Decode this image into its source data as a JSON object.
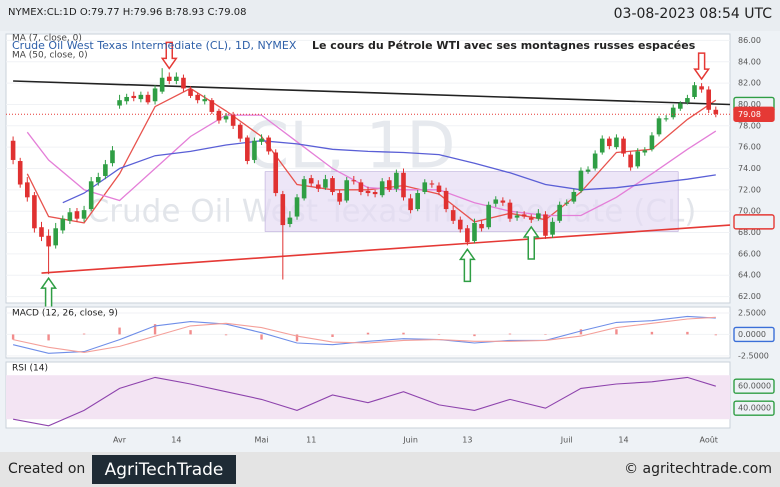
{
  "header": {
    "symbol_info": "NYMEX:CL:1D O:79.77 H:79.96 B:78.93 C:79.08",
    "timestamp": "03-08-2023 08:54 UTC"
  },
  "chart_data": [
    {
      "type": "candlestick",
      "title": "Le cours du Pétrole WTI avec ses montagnes russes espacées",
      "subtitle": "Crude Oil West Texas Intermediate (CL), 1D, NYMEX",
      "watermark": "CL, 1D",
      "watermark_name": "Crude Oil West Texas Intermediate (CL)",
      "categories": [
        null,
        null,
        null,
        null,
        null,
        null,
        null,
        null,
        null,
        null,
        null,
        null,
        null,
        null,
        null,
        "Avr",
        null,
        null,
        null,
        null,
        null,
        null,
        null,
        "14",
        null,
        null,
        null,
        null,
        null,
        null,
        null,
        null,
        null,
        null,
        null,
        "Mai",
        null,
        null,
        null,
        null,
        null,
        null,
        "11",
        null,
        null,
        null,
        null,
        null,
        null,
        null,
        null,
        null,
        null,
        null,
        null,
        null,
        "Juin",
        null,
        null,
        null,
        null,
        null,
        null,
        null,
        "13",
        null,
        null,
        null,
        null,
        null,
        null,
        null,
        null,
        null,
        null,
        null,
        null,
        null,
        "Juil",
        null,
        null,
        null,
        null,
        null,
        null,
        null,
        "14",
        null,
        null,
        null,
        null,
        null,
        null,
        null,
        null,
        null,
        null,
        null,
        "Août",
        null
      ],
      "open": [
        76.6,
        74.7,
        72.7,
        71.5,
        68.5,
        67.7,
        66.8,
        68.2,
        69.1,
        70.0,
        69.3,
        70.2,
        72.7,
        73.3,
        74.5,
        79.9,
        80.3,
        80.8,
        80.5,
        80.9,
        80.3,
        81.2,
        82.6,
        82.2,
        82.5,
        81.4,
        80.9,
        80.3,
        80.4,
        79.4,
        78.6,
        79.0,
        78.1,
        76.9,
        74.8,
        76.5,
        76.9,
        75.5,
        71.6,
        68.8,
        69.5,
        71.2,
        73.1,
        72.5,
        72.2,
        73.1,
        71.7,
        71.0,
        72.9,
        72.7,
        71.9,
        71.8,
        71.5,
        72.9,
        72.1,
        73.6,
        71.2,
        70.2,
        71.8,
        72.6,
        72.4,
        71.9,
        70.1,
        69.2,
        68.4,
        67.2,
        68.8,
        68.5,
        70.7,
        71.0,
        70.8,
        69.4,
        69.7,
        69.4,
        69.3,
        69.7,
        67.8,
        69.1,
        70.7,
        70.9,
        71.9,
        73.7,
        74.0,
        75.5,
        76.8,
        76.0,
        76.8,
        75.3,
        74.2,
        75.5,
        75.8,
        77.2,
        78.6,
        78.8,
        79.6,
        80.2,
        80.7,
        81.7,
        81.4,
        79.5
      ],
      "high": [
        77.0,
        75.0,
        73.2,
        71.8,
        69.0,
        68.3,
        68.9,
        69.6,
        70.3,
        70.3,
        70.5,
        73.2,
        73.6,
        74.8,
        76.1,
        80.9,
        81.0,
        81.2,
        81.2,
        81.2,
        81.8,
        83.4,
        83.0,
        83.0,
        82.8,
        81.7,
        81.1,
        80.9,
        80.6,
        79.6,
        79.2,
        79.3,
        78.3,
        77.1,
        76.9,
        77.2,
        77.1,
        75.8,
        71.9,
        70.0,
        71.6,
        73.3,
        73.4,
        72.9,
        73.4,
        73.3,
        72.0,
        73.2,
        73.3,
        73.0,
        72.3,
        72.0,
        73.1,
        73.2,
        73.9,
        74.0,
        71.6,
        72.0,
        73.0,
        72.9,
        72.7,
        72.2,
        70.5,
        69.5,
        68.7,
        69.3,
        69.2,
        70.9,
        71.4,
        71.3,
        71.1,
        70.0,
        70.0,
        69.7,
        70.2,
        70.0,
        69.4,
        70.9,
        71.1,
        72.1,
        74.1,
        74.2,
        75.7,
        77.1,
        77.0,
        77.2,
        77.0,
        75.6,
        75.9,
        76.0,
        77.4,
        78.9,
        79.0,
        80.0,
        80.3,
        80.9,
        82.1,
        82.0,
        81.7,
        79.8
      ],
      "low": [
        74.4,
        72.2,
        70.9,
        68.0,
        67.2,
        64.1,
        66.5,
        67.9,
        68.8,
        69.0,
        69.0,
        70.0,
        72.4,
        73.0,
        74.2,
        79.6,
        80.0,
        80.3,
        80.2,
        80.0,
        80.0,
        81.0,
        81.9,
        81.9,
        81.2,
        80.6,
        80.1,
        80.0,
        79.1,
        78.2,
        78.3,
        77.7,
        76.5,
        74.4,
        74.5,
        76.2,
        75.3,
        71.4,
        63.6,
        68.5,
        69.2,
        71.0,
        72.3,
        71.8,
        72.0,
        71.5,
        70.6,
        70.8,
        72.5,
        71.5,
        71.4,
        71.3,
        71.3,
        71.8,
        71.8,
        71.0,
        69.8,
        70.0,
        71.6,
        72.2,
        71.5,
        69.9,
        68.8,
        68.0,
        66.8,
        67.0,
        68.1,
        68.3,
        70.4,
        70.5,
        69.0,
        69.1,
        69.3,
        68.9,
        69.1,
        67.4,
        67.5,
        68.9,
        70.5,
        70.7,
        71.7,
        73.5,
        73.8,
        75.3,
        75.8,
        75.8,
        75.1,
        73.8,
        74.0,
        75.2,
        75.6,
        77.0,
        78.4,
        78.6,
        79.4,
        80.0,
        80.5,
        81.1,
        79.2,
        78.8
      ],
      "close": [
        74.8,
        72.5,
        71.3,
        68.4,
        67.6,
        66.7,
        68.4,
        69.3,
        69.9,
        69.3,
        70.1,
        72.8,
        73.2,
        74.4,
        75.7,
        80.4,
        80.7,
        80.6,
        80.9,
        80.2,
        81.5,
        82.5,
        82.2,
        82.6,
        81.5,
        80.8,
        80.4,
        80.5,
        79.3,
        78.5,
        78.9,
        78.0,
        76.8,
        74.7,
        76.6,
        76.8,
        75.6,
        71.7,
        68.7,
        69.4,
        71.3,
        73.0,
        72.6,
        72.1,
        73.0,
        71.8,
        70.9,
        72.9,
        72.8,
        71.8,
        71.7,
        71.6,
        72.8,
        72.0,
        73.6,
        71.3,
        70.1,
        71.7,
        72.7,
        72.5,
        71.8,
        70.2,
        69.1,
        68.3,
        67.1,
        68.9,
        68.4,
        70.6,
        71.1,
        70.8,
        69.3,
        69.6,
        69.5,
        69.2,
        69.8,
        67.7,
        69.0,
        70.6,
        70.8,
        71.8,
        73.8,
        73.9,
        75.4,
        76.8,
        76.1,
        76.9,
        75.4,
        74.1,
        75.6,
        75.7,
        77.1,
        78.7,
        78.7,
        79.7,
        80.1,
        80.6,
        81.8,
        81.4,
        79.5,
        79.1
      ],
      "up_color": "#2f9e44",
      "down_color": "#e03131",
      "series": [
        {
          "name": "MA (7, close, 0)",
          "color": "#e8534e",
          "x": [
            2,
            5,
            10,
            15,
            20,
            25,
            30,
            35,
            40,
            45,
            50,
            55,
            60,
            65,
            70,
            75,
            80,
            85,
            90,
            95,
            99
          ],
          "values": [
            73.5,
            69.5,
            68.9,
            73.5,
            79.8,
            81.5,
            79.4,
            77.0,
            72.5,
            72.0,
            72.0,
            72.4,
            71.6,
            69.0,
            69.8,
            69.2,
            71.8,
            75.5,
            75.8,
            78.6,
            80.4
          ]
        },
        {
          "color": "#e47fd8",
          "x": [
            2,
            5,
            10,
            15,
            20,
            25,
            30,
            35,
            40,
            45,
            50,
            55,
            60,
            65,
            70,
            75,
            80,
            85,
            90,
            95,
            99
          ],
          "values": [
            77.4,
            74.8,
            72.0,
            71.0,
            74.0,
            77.0,
            79.0,
            79.0,
            76.5,
            74.0,
            72.2,
            72.0,
            72.0,
            70.8,
            70.0,
            69.6,
            69.6,
            71.3,
            73.5,
            75.8,
            77.5
          ]
        },
        {
          "name": "MA (50, close, 0)",
          "color": "#5a5fd6",
          "x": [
            7,
            10,
            15,
            20,
            25,
            30,
            35,
            40,
            45,
            50,
            55,
            60,
            65,
            70,
            75,
            80,
            85,
            90,
            95,
            99
          ],
          "values": [
            70.8,
            71.7,
            74.0,
            75.2,
            75.6,
            76.2,
            76.6,
            76.3,
            75.8,
            75.6,
            75.5,
            75.3,
            74.5,
            73.6,
            72.5,
            72.0,
            72.2,
            72.6,
            73.0,
            73.4
          ]
        }
      ],
      "lines": [
        {
          "color": "#222222",
          "x": [
            0,
            101
          ],
          "values": [
            82.2,
            80.0
          ]
        },
        {
          "color": "#e53935",
          "x": [
            4,
            101
          ],
          "values": [
            64.2,
            68.7
          ]
        }
      ],
      "zone": {
        "color": "#e6dcf3",
        "x": [
          35.5,
          93.7
        ],
        "values": [
          73.7,
          68.1
        ]
      },
      "arrows": [
        {
          "at": 22,
          "direction": "down",
          "color": "#e53935"
        },
        {
          "at": 97,
          "direction": "down",
          "color": "#e53935"
        },
        {
          "at": 5,
          "direction": "up",
          "color": "#2f9e44"
        },
        {
          "at": 64,
          "direction": "up",
          "color": "#2f9e44"
        },
        {
          "at": 73,
          "direction": "up",
          "color": "#2f9e44"
        }
      ],
      "tags": [
        {
          "value": 80,
          "color": "#2f9e44"
        },
        {
          "value": 79.08,
          "label": "79.08",
          "color": "#e53935",
          "filled": true
        },
        {
          "value": 69,
          "color": "#e53935"
        }
      ],
      "xlim": [
        -1,
        101
      ],
      "ylim": [
        61.4,
        86.6
      ],
      "yticks": [
        {
          "value": 62,
          "label": "62.00"
        },
        {
          "value": 64,
          "label": "64.00"
        },
        {
          "value": 66,
          "label": "66.00"
        },
        {
          "value": 68,
          "label": "68.00"
        },
        {
          "value": 70,
          "label": "70.00"
        },
        {
          "value": 72,
          "label": "72.00"
        },
        {
          "value": 74,
          "label": "74.00"
        },
        {
          "value": 76,
          "label": "76.00"
        },
        {
          "value": 78,
          "label": "78.00"
        },
        {
          "value": 80,
          "label": "80.00"
        },
        {
          "value": 82,
          "label": "82.00"
        },
        {
          "value": 84,
          "label": "84.00"
        },
        {
          "value": 86,
          "label": "86.00"
        }
      ]
    },
    {
      "type": "line",
      "title": "MACD (12, 26, close, 9)",
      "x": [
        0,
        5,
        10,
        15,
        20,
        25,
        30,
        35,
        40,
        45,
        50,
        55,
        60,
        65,
        70,
        75,
        80,
        85,
        90,
        95,
        99
      ],
      "series": [
        {
          "color": "#f28c8c",
          "style": "bar",
          "values": [
            -0.6,
            -0.7,
            0.1,
            0.8,
            1.2,
            0.5,
            -0.1,
            -0.6,
            -0.8,
            -0.3,
            0.2,
            0.2,
            0,
            -0.2,
            0.1,
            0,
            0.6,
            0.6,
            0.3,
            0.3,
            -0.1
          ]
        },
        {
          "color": "#6f8ee8",
          "values": [
            -1.2,
            -2.2,
            -2.0,
            -0.6,
            1.0,
            1.5,
            1.2,
            0.2,
            -1.0,
            -1.2,
            -0.8,
            -0.5,
            -0.6,
            -1.0,
            -0.7,
            -0.7,
            0.4,
            1.4,
            1.6,
            2.1,
            1.9
          ]
        },
        {
          "color": "#f4a09a",
          "values": [
            -0.6,
            -1.5,
            -2.1,
            -1.4,
            -0.2,
            1.0,
            1.3,
            0.8,
            -0.2,
            -0.9,
            -1.0,
            -0.7,
            -0.6,
            -0.8,
            -0.8,
            -0.7,
            -0.2,
            0.8,
            1.3,
            1.8,
            2.0
          ]
        }
      ],
      "tags": [
        {
          "value": 0,
          "color": "#3b6fd8"
        }
      ],
      "xlim": [
        -1,
        101
      ],
      "ylim": [
        -2.75,
        3.2
      ],
      "yticks": [
        {
          "value": 2.5,
          "label": "2.5000"
        },
        {
          "value": 0,
          "label": "0.0000"
        },
        {
          "value": -2.5,
          "label": "-2.5000"
        }
      ]
    },
    {
      "type": "line",
      "title": "RSI (14)",
      "x": [
        0,
        5,
        10,
        15,
        20,
        25,
        30,
        35,
        40,
        45,
        50,
        55,
        60,
        65,
        70,
        75,
        80,
        85,
        90,
        95,
        99
      ],
      "series": [
        {
          "color": "#8e44ad",
          "values": [
            30,
            24,
            38,
            58,
            68,
            62,
            55,
            48,
            38,
            52,
            45,
            55,
            43,
            38,
            48,
            40,
            58,
            62,
            64,
            68,
            60
          ]
        }
      ],
      "band": {
        "values": [
          30,
          70
        ],
        "color": "#f3e4f3"
      },
      "tags": [
        {
          "value": 60,
          "color": "#2f9e44"
        },
        {
          "value": 40,
          "color": "#2f9e44"
        }
      ],
      "xlim": [
        -1,
        101
      ],
      "ylim": [
        22,
        82
      ],
      "yticks": [
        {
          "value": 60,
          "label": "60.0000"
        },
        {
          "value": 40,
          "label": "40.0000"
        }
      ]
    }
  ],
  "footer": {
    "created": "Created on",
    "brand": "AgriTechTrade",
    "site": "© agritechtrade.com"
  }
}
